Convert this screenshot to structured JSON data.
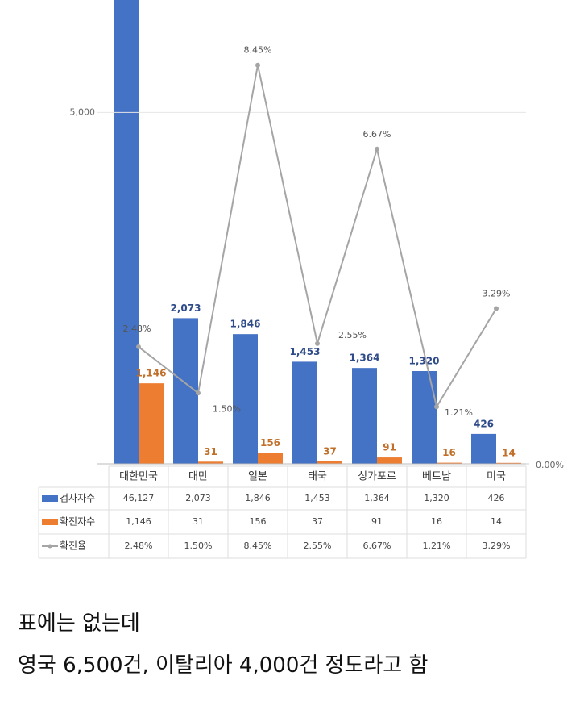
{
  "chart_data": {
    "type": "bar",
    "categories": [
      "대한민국",
      "대만",
      "일본",
      "태국",
      "싱가포르",
      "베트남",
      "미국"
    ],
    "series": [
      {
        "name": "검사자수",
        "color": "#4472c4",
        "values": [
          46127,
          2073,
          1846,
          1453,
          1364,
          1320,
          426
        ],
        "value_labels": [
          "46,127",
          "2,073",
          "1,846",
          "1,453",
          "1,364",
          "1,320",
          "426"
        ]
      },
      {
        "name": "확진자수",
        "color": "#ed7d31",
        "values": [
          1146,
          31,
          156,
          37,
          91,
          16,
          14
        ],
        "value_labels": [
          "1,146",
          "31",
          "156",
          "37",
          "91",
          "16",
          "14"
        ]
      },
      {
        "name": "확진율",
        "color": "#a5a5a5",
        "type": "line",
        "axis": "y2",
        "values": [
          2.48,
          1.5,
          8.45,
          2.55,
          6.67,
          1.21,
          3.29
        ],
        "value_labels": [
          "2.48%",
          "1.50%",
          "8.45%",
          "2.55%",
          "6.67%",
          "1.21%",
          "3.29%"
        ]
      }
    ],
    "ylim": [
      0,
      6600
    ],
    "yticks": [
      {
        "value": 5000,
        "label": "5,000"
      }
    ],
    "y2lim": [
      0,
      9.83
    ],
    "y2ticks": [
      {
        "value": 0,
        "label": "0.00%"
      }
    ],
    "grid": true
  },
  "caption_lines": [
    "표에는 없는데",
    "영국 6,500건, 이탈리아 4,000건 정도라고 함"
  ]
}
